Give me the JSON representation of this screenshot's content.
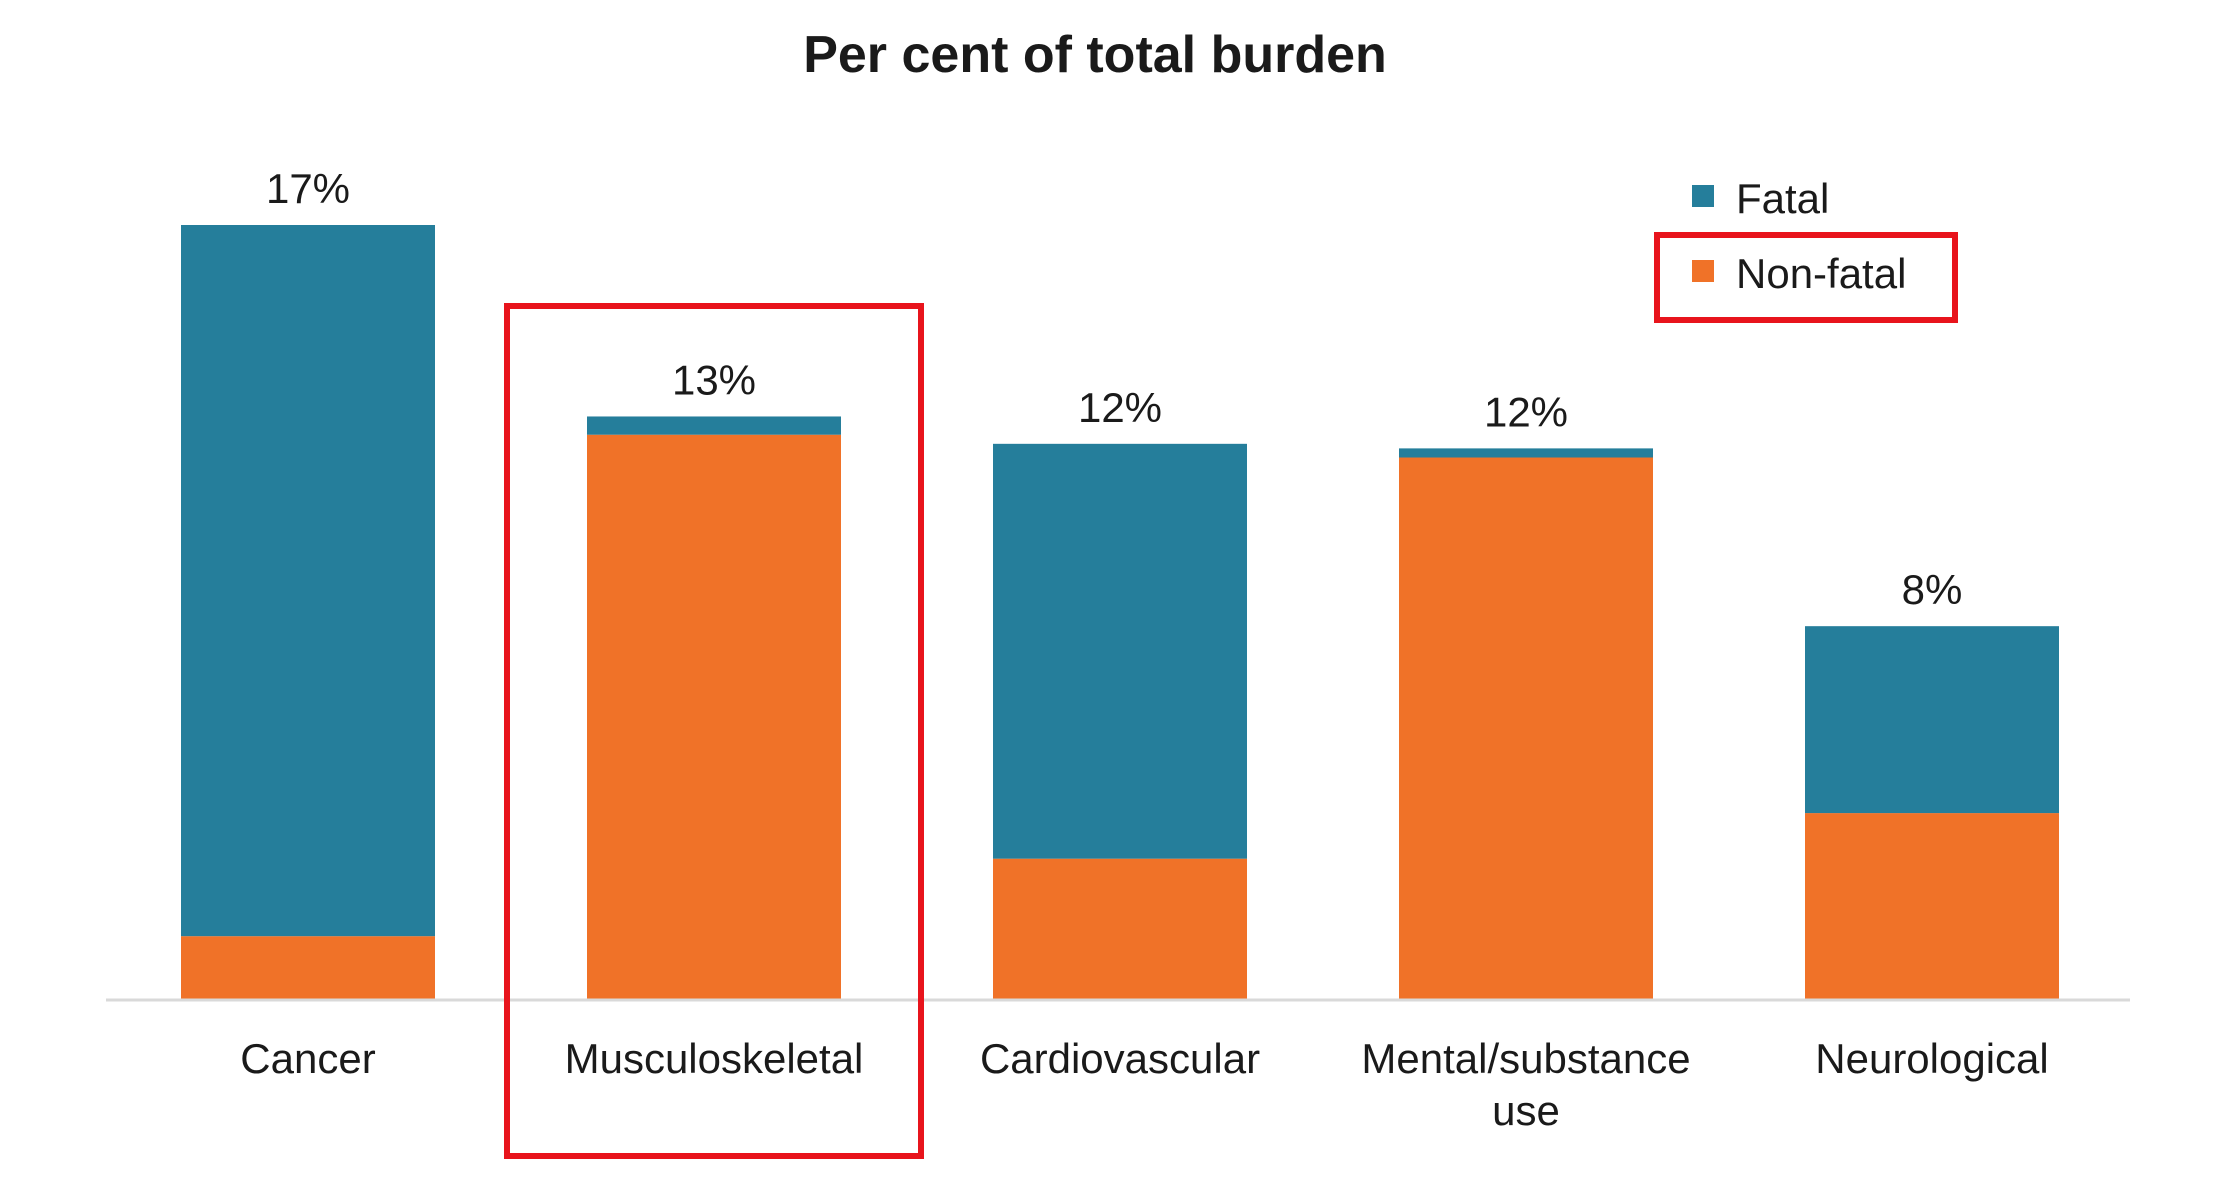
{
  "chart_data": {
    "type": "bar",
    "stacked": true,
    "title": "Per cent of total burden",
    "xlabel": "",
    "ylabel": "",
    "ylim": [
      0,
      17
    ],
    "grid": false,
    "legend_position": "top-right",
    "categories": [
      [
        "Cancer"
      ],
      [
        "Musculoskeletal"
      ],
      [
        "Cardiovascular"
      ],
      [
        "Mental/substance",
        "use"
      ],
      [
        "Neurological"
      ]
    ],
    "totals_labels": [
      "17%",
      "13%",
      "12%",
      "12%",
      "8%"
    ],
    "series": [
      {
        "name": "Non-fatal",
        "color": "#f07228",
        "values": [
          1.4,
          12.4,
          3.1,
          11.9,
          4.1
        ]
      },
      {
        "name": "Fatal",
        "color": "#257e9b",
        "values": [
          15.6,
          0.4,
          9.1,
          0.2,
          4.1
        ]
      }
    ],
    "highlights": [
      "Musculoskeletal",
      "Non-fatal"
    ],
    "highlight_color": "#e8141c",
    "axis_color": "#d9d9d9"
  }
}
